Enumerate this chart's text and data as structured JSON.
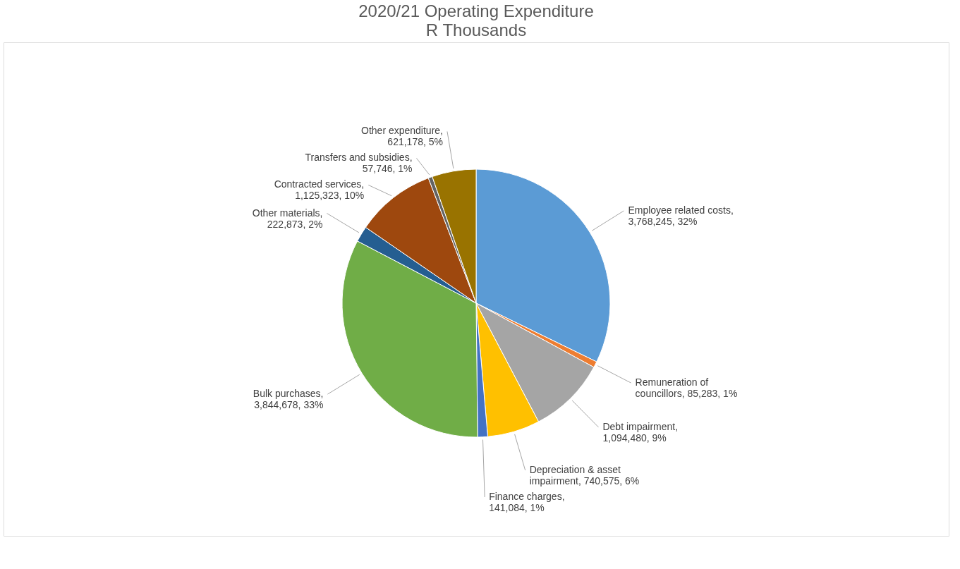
{
  "chart_data": {
    "type": "pie",
    "title": "2020/21 Operating Expenditure",
    "subtitle": "R Thousands",
    "categories": [
      "Employee related costs",
      "Remuneration of councillors",
      "Debt impairment",
      "Depreciation & asset impairment",
      "Finance charges",
      "Bulk purchases",
      "Other materials",
      "Contracted services",
      "Transfers and subsidies",
      "Other expenditure"
    ],
    "values": [
      3768245,
      85283,
      1094480,
      740575,
      141084,
      3844678,
      222873,
      1125323,
      57746,
      621178
    ],
    "value_labels": [
      ", 3,768,245, 32%",
      ", 85,283, 1%",
      ", 1,094,480, 9%",
      ", 740,575, 6%",
      ", 141,084, 1%",
      ", 3,844,678, 33%",
      ", 222,873, 2%",
      ", 1,125,323, 10%",
      ", 57,746, 1%",
      ", 621,178, 5%"
    ],
    "colors": [
      "#5b9bd5",
      "#ed7d31",
      "#a5a5a5",
      "#ffc000",
      "#4472c4",
      "#70ad47",
      "#255e91",
      "#9e480e",
      "#636363",
      "#997300"
    ]
  }
}
